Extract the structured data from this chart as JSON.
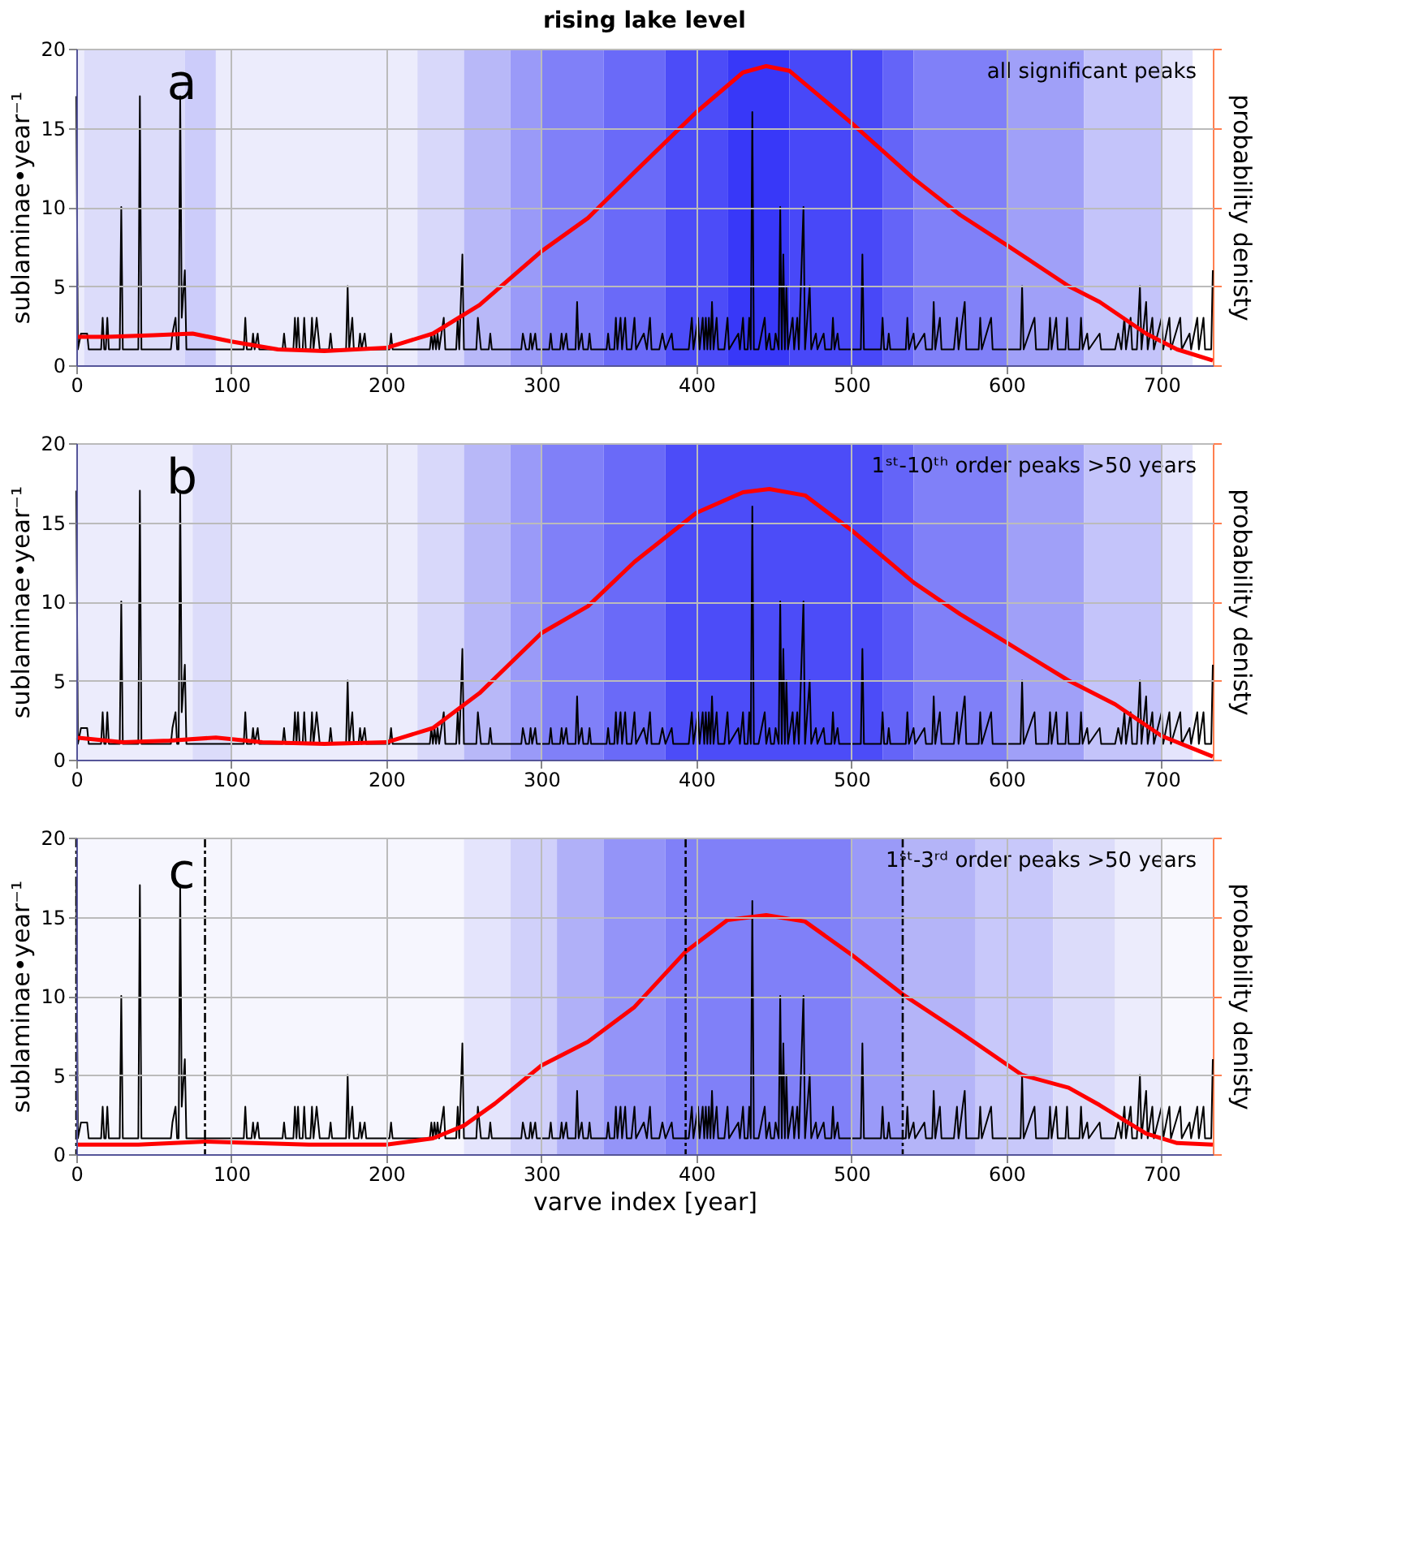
{
  "chart_data": [
    {
      "type": "line",
      "title": "rising lake level",
      "ylabel": "sublaminae•year⁻¹",
      "y2label": "probability denisty",
      "annotations": [
        "a",
        "all significant peaks"
      ],
      "xlim": [
        0,
        733
      ],
      "xticks": [
        0,
        100,
        200,
        300,
        400,
        500,
        600,
        700
      ],
      "ylim": [
        0,
        20
      ],
      "yticks": [
        0,
        5,
        10,
        15,
        20
      ],
      "grid": true,
      "bands": [
        {
          "axis": "x",
          "from": 0,
          "to": 5,
          "color": "#ececfc"
        },
        {
          "axis": "x",
          "from": 5,
          "to": 70,
          "color": "#dcdcfa"
        },
        {
          "axis": "x",
          "from": 70,
          "to": 90,
          "color": "#ccccfa"
        },
        {
          "axis": "x",
          "from": 90,
          "to": 220,
          "color": "#ececfc"
        },
        {
          "axis": "x",
          "from": 220,
          "to": 250,
          "color": "#d8d8fa"
        },
        {
          "axis": "x",
          "from": 250,
          "to": 280,
          "color": "#b8b8f8"
        },
        {
          "axis": "x",
          "from": 280,
          "to": 300,
          "color": "#9a9af8"
        },
        {
          "axis": "x",
          "from": 300,
          "to": 340,
          "color": "#8080f8"
        },
        {
          "axis": "x",
          "from": 340,
          "to": 380,
          "color": "#6a6af8"
        },
        {
          "axis": "x",
          "from": 380,
          "to": 420,
          "color": "#4c4cf8"
        },
        {
          "axis": "x",
          "from": 420,
          "to": 460,
          "color": "#3838f8"
        },
        {
          "axis": "x",
          "from": 460,
          "to": 520,
          "color": "#4848f8"
        },
        {
          "axis": "x",
          "from": 520,
          "to": 540,
          "color": "#6464f8"
        },
        {
          "axis": "x",
          "from": 540,
          "to": 600,
          "color": "#8080f8"
        },
        {
          "axis": "x",
          "from": 600,
          "to": 650,
          "color": "#a0a0f8"
        },
        {
          "axis": "x",
          "from": 650,
          "to": 700,
          "color": "#c4c4fa"
        },
        {
          "axis": "x",
          "from": 700,
          "to": 720,
          "color": "#e4e4fc"
        }
      ],
      "series": [
        {
          "color": "#000000",
          "x": [
            0,
            1,
            3,
            7,
            8,
            16,
            17,
            18,
            19,
            20,
            21,
            28,
            29,
            30,
            40,
            41,
            42,
            61,
            62,
            64,
            65,
            66,
            67,
            68,
            70,
            71,
            108,
            109,
            110,
            113,
            114,
            115,
            117,
            118,
            133,
            134,
            135,
            140,
            141,
            142,
            143,
            144,
            146,
            147,
            148,
            151,
            152,
            153,
            155,
            156,
            157,
            163,
            164,
            165,
            174,
            175,
            176,
            178,
            179,
            182,
            183,
            184,
            186,
            187,
            202,
            203,
            204,
            228,
            229,
            230,
            231,
            232,
            233,
            234,
            237,
            238,
            245,
            246,
            247,
            249,
            250,
            258,
            259,
            261,
            266,
            267,
            268,
            287,
            288,
            290,
            292,
            293,
            294,
            296,
            297,
            305,
            306,
            307,
            312,
            313,
            314,
            316,
            317,
            322,
            323,
            324,
            326,
            327,
            330,
            331,
            332,
            342,
            343,
            344,
            347,
            348,
            349,
            351,
            352,
            354,
            355,
            358,
            360,
            361,
            366,
            368,
            370,
            371,
            376,
            378,
            380,
            384,
            385,
            395,
            397,
            398,
            401,
            402,
            404,
            405,
            406,
            407,
            408,
            409,
            410,
            411,
            413,
            414,
            418,
            420,
            421,
            427,
            428,
            430,
            431,
            433,
            434,
            435,
            436,
            437,
            440,
            442,
            444,
            445,
            447,
            448,
            450,
            451,
            453,
            454,
            455,
            456,
            457,
            458,
            459,
            462,
            463,
            465,
            466,
            469,
            470,
            473,
            474,
            477,
            478,
            482,
            483,
            487,
            488,
            489,
            491,
            492,
            506,
            507,
            508,
            519,
            520,
            521,
            523,
            524,
            525,
            535,
            536,
            537,
            540,
            541,
            547,
            548,
            552,
            553,
            554,
            557,
            558,
            566,
            568,
            569,
            573,
            574,
            582,
            583,
            584,
            590,
            591,
            609,
            610,
            611,
            618,
            619,
            627,
            628,
            629,
            632,
            633,
            638,
            639,
            640,
            647,
            648,
            649,
            652,
            653,
            660,
            661,
            670,
            672,
            674,
            676,
            677,
            680,
            681,
            684,
            686,
            687,
            690,
            691,
            694,
            695,
            700,
            701,
            705,
            706,
            712,
            713,
            718,
            719,
            723,
            724,
            727,
            728,
            732,
            733
          ],
          "values": [
            17,
            1,
            2,
            2,
            1,
            1,
            3,
            1,
            1,
            3,
            1,
            1,
            10,
            1,
            1,
            17,
            1,
            1,
            2,
            3,
            1,
            1,
            17,
            3,
            6,
            1,
            1,
            3,
            1,
            1,
            2,
            1,
            2,
            1,
            1,
            2,
            1,
            1,
            3,
            1,
            3,
            1,
            1,
            3,
            1,
            1,
            3,
            1,
            3,
            2,
            1,
            1,
            2,
            1,
            1,
            5,
            1,
            3,
            1,
            1,
            2,
            1,
            2,
            1,
            1,
            2,
            1,
            1,
            2,
            1,
            2,
            1,
            2,
            1,
            3,
            1,
            1,
            3,
            1,
            7,
            1,
            1,
            3,
            1,
            1,
            2,
            1,
            1,
            2,
            1,
            1,
            2,
            1,
            2,
            1,
            1,
            2,
            1,
            1,
            2,
            1,
            2,
            1,
            1,
            4,
            1,
            2,
            1,
            1,
            2,
            1,
            1,
            2,
            1,
            1,
            3,
            1,
            3,
            1,
            3,
            1,
            1,
            3,
            1,
            2,
            1,
            3,
            1,
            1,
            2,
            1,
            2,
            1,
            1,
            3,
            1,
            3,
            1,
            3,
            1,
            3,
            1,
            3,
            1,
            4,
            1,
            3,
            1,
            1,
            3,
            1,
            2,
            1,
            3,
            1,
            1,
            3,
            1,
            16,
            1,
            1,
            2,
            3,
            1,
            2,
            1,
            1,
            2,
            1,
            10,
            1,
            7,
            1,
            5,
            1,
            3,
            1,
            3,
            1,
            10,
            1,
            5,
            1,
            2,
            1,
            2,
            1,
            1,
            3,
            1,
            2,
            1,
            1,
            7,
            1,
            1,
            3,
            1,
            1,
            2,
            1,
            1,
            3,
            1,
            2,
            1,
            2,
            1,
            1,
            4,
            1,
            3,
            1,
            1,
            3,
            1,
            4,
            1,
            1,
            3,
            1,
            3,
            1,
            1,
            5,
            1,
            3,
            1,
            1,
            3,
            1,
            3,
            1,
            1,
            3,
            1,
            1,
            3,
            1,
            2,
            1,
            2,
            1,
            1,
            2,
            1,
            3,
            1,
            3,
            1,
            1,
            5,
            1,
            4,
            1,
            3,
            1,
            3,
            1,
            3,
            1,
            3,
            1,
            2,
            1,
            3,
            1,
            3,
            1,
            1,
            6
          ]
        },
        {
          "color": "#ff0000",
          "x": [
            0,
            20,
            50,
            75,
            100,
            130,
            160,
            200,
            230,
            260,
            300,
            330,
            360,
            400,
            430,
            445,
            460,
            500,
            540,
            570,
            600,
            640,
            660,
            690,
            710,
            733
          ],
          "values": [
            1.8,
            1.8,
            1.9,
            2.0,
            1.5,
            1.0,
            0.9,
            1.1,
            2.0,
            3.8,
            7.2,
            9.3,
            12.2,
            16,
            18.5,
            18.9,
            18.6,
            15.3,
            11.8,
            9.5,
            7.6,
            5.0,
            4.0,
            2.0,
            1.0,
            0.3
          ]
        }
      ]
    },
    {
      "type": "line",
      "ylabel": "sublaminae•year⁻¹",
      "y2label": "probability denisty",
      "annotations": [
        "b",
        "1ˢᵗ-10ᵗʰ order peaks >50 years"
      ],
      "xlim": [
        0,
        733
      ],
      "xticks": [
        0,
        100,
        200,
        300,
        400,
        500,
        600,
        700
      ],
      "ylim": [
        0,
        20
      ],
      "yticks": [
        0,
        5,
        10,
        15,
        20
      ],
      "grid": true,
      "bands": [
        {
          "axis": "x",
          "from": 0,
          "to": 75,
          "color": "#ececfc"
        },
        {
          "axis": "x",
          "from": 75,
          "to": 100,
          "color": "#dcdcfa"
        },
        {
          "axis": "x",
          "from": 100,
          "to": 220,
          "color": "#ececfc"
        },
        {
          "axis": "x",
          "from": 220,
          "to": 250,
          "color": "#d8d8fa"
        },
        {
          "axis": "x",
          "from": 250,
          "to": 280,
          "color": "#b8b8f8"
        },
        {
          "axis": "x",
          "from": 280,
          "to": 300,
          "color": "#9a9af8"
        },
        {
          "axis": "x",
          "from": 300,
          "to": 340,
          "color": "#8080f8"
        },
        {
          "axis": "x",
          "from": 340,
          "to": 380,
          "color": "#6a6af8"
        },
        {
          "axis": "x",
          "from": 380,
          "to": 520,
          "color": "#4c4cf8"
        },
        {
          "axis": "x",
          "from": 520,
          "to": 540,
          "color": "#6464f8"
        },
        {
          "axis": "x",
          "from": 540,
          "to": 600,
          "color": "#8080f8"
        },
        {
          "axis": "x",
          "from": 600,
          "to": 650,
          "color": "#a0a0f8"
        },
        {
          "axis": "x",
          "from": 650,
          "to": 700,
          "color": "#c4c4fa"
        },
        {
          "axis": "x",
          "from": 700,
          "to": 720,
          "color": "#e4e4fc"
        }
      ],
      "series": [
        {
          "color": "#000000",
          "x": [
            0,
            1,
            3,
            7,
            8,
            16,
            17,
            18,
            19,
            20,
            21,
            28,
            29,
            30,
            40,
            41,
            42,
            61,
            62,
            64,
            65,
            66,
            67,
            68,
            70,
            71,
            108,
            109,
            110,
            113,
            114,
            115,
            117,
            118,
            133,
            134,
            135,
            140,
            141,
            142,
            143,
            144,
            146,
            147,
            148,
            151,
            152,
            153,
            155,
            156,
            157,
            163,
            164,
            165,
            174,
            175,
            176,
            178,
            179,
            182,
            183,
            184,
            186,
            187,
            202,
            203,
            204,
            228,
            229,
            230,
            231,
            232,
            233,
            234,
            237,
            238,
            245,
            246,
            247,
            249,
            250,
            258,
            259,
            261,
            266,
            267,
            268,
            287,
            288,
            290,
            292,
            293,
            294,
            296,
            297,
            305,
            306,
            307,
            312,
            313,
            314,
            316,
            317,
            322,
            323,
            324,
            326,
            327,
            330,
            331,
            332,
            342,
            343,
            344,
            347,
            348,
            349,
            351,
            352,
            354,
            355,
            358,
            360,
            361,
            366,
            368,
            370,
            371,
            376,
            378,
            380,
            384,
            385,
            395,
            397,
            398,
            401,
            402,
            404,
            405,
            406,
            407,
            408,
            409,
            410,
            411,
            413,
            414,
            418,
            420,
            421,
            427,
            428,
            430,
            431,
            433,
            434,
            435,
            436,
            437,
            440,
            442,
            444,
            445,
            447,
            448,
            450,
            451,
            453,
            454,
            455,
            456,
            457,
            458,
            459,
            462,
            463,
            465,
            466,
            469,
            470,
            473,
            474,
            477,
            478,
            482,
            483,
            487,
            488,
            489,
            491,
            492,
            506,
            507,
            508,
            519,
            520,
            521,
            523,
            524,
            525,
            535,
            536,
            537,
            540,
            541,
            547,
            548,
            552,
            553,
            554,
            557,
            558,
            566,
            568,
            569,
            573,
            574,
            582,
            583,
            584,
            590,
            591,
            609,
            610,
            611,
            618,
            619,
            627,
            628,
            629,
            632,
            633,
            638,
            639,
            640,
            647,
            648,
            649,
            652,
            653,
            660,
            661,
            670,
            672,
            674,
            676,
            677,
            680,
            681,
            684,
            686,
            687,
            690,
            691,
            694,
            695,
            700,
            701,
            705,
            706,
            712,
            713,
            718,
            719,
            723,
            724,
            727,
            728,
            732,
            733
          ],
          "values": [
            17,
            1,
            2,
            2,
            1,
            1,
            3,
            1,
            1,
            3,
            1,
            1,
            10,
            1,
            1,
            17,
            1,
            1,
            2,
            3,
            1,
            1,
            17,
            3,
            6,
            1,
            1,
            3,
            1,
            1,
            2,
            1,
            2,
            1,
            1,
            2,
            1,
            1,
            3,
            1,
            3,
            1,
            1,
            3,
            1,
            1,
            3,
            1,
            3,
            2,
            1,
            1,
            2,
            1,
            1,
            5,
            1,
            3,
            1,
            1,
            2,
            1,
            2,
            1,
            1,
            2,
            1,
            1,
            2,
            1,
            2,
            1,
            2,
            1,
            3,
            1,
            1,
            3,
            1,
            7,
            1,
            1,
            3,
            1,
            1,
            2,
            1,
            1,
            2,
            1,
            1,
            2,
            1,
            2,
            1,
            1,
            2,
            1,
            1,
            2,
            1,
            2,
            1,
            1,
            4,
            1,
            2,
            1,
            1,
            2,
            1,
            1,
            2,
            1,
            1,
            3,
            1,
            3,
            1,
            3,
            1,
            1,
            3,
            1,
            2,
            1,
            3,
            1,
            1,
            2,
            1,
            2,
            1,
            1,
            3,
            1,
            3,
            1,
            3,
            1,
            3,
            1,
            3,
            1,
            4,
            1,
            3,
            1,
            1,
            3,
            1,
            2,
            1,
            3,
            1,
            1,
            3,
            1,
            16,
            1,
            1,
            2,
            3,
            1,
            2,
            1,
            1,
            2,
            1,
            10,
            1,
            7,
            1,
            5,
            1,
            3,
            1,
            3,
            1,
            10,
            1,
            5,
            1,
            2,
            1,
            2,
            1,
            1,
            3,
            1,
            2,
            1,
            1,
            7,
            1,
            1,
            3,
            1,
            1,
            2,
            1,
            1,
            3,
            1,
            2,
            1,
            2,
            1,
            1,
            4,
            1,
            3,
            1,
            1,
            3,
            1,
            4,
            1,
            1,
            3,
            1,
            3,
            1,
            1,
            5,
            1,
            3,
            1,
            1,
            3,
            1,
            3,
            1,
            1,
            3,
            1,
            1,
            3,
            1,
            2,
            1,
            2,
            1,
            1,
            2,
            1,
            3,
            1,
            3,
            1,
            1,
            5,
            1,
            4,
            1,
            3,
            1,
            3,
            1,
            3,
            1,
            3,
            1,
            2,
            1,
            3,
            1,
            3,
            1,
            1,
            6
          ]
        },
        {
          "color": "#ff0000",
          "x": [
            0,
            30,
            60,
            90,
            120,
            160,
            200,
            230,
            260,
            300,
            330,
            360,
            400,
            430,
            447,
            470,
            500,
            540,
            570,
            600,
            640,
            670,
            700,
            733
          ],
          "values": [
            1.4,
            1.1,
            1.2,
            1.4,
            1.1,
            1.0,
            1.1,
            2.0,
            4.2,
            8.0,
            9.7,
            12.5,
            15.6,
            16.9,
            17.1,
            16.7,
            14.5,
            11.2,
            9.2,
            7.4,
            5.0,
            3.5,
            1.5,
            0.2
          ]
        }
      ]
    },
    {
      "type": "line",
      "ylabel": "sublaminae•year⁻¹",
      "y2label": "probability denisty",
      "xlabel": "varve index [year]",
      "annotations": [
        "c",
        "1ˢᵗ-3ʳᵈ order peaks >50 years"
      ],
      "xlim": [
        0,
        733
      ],
      "xticks": [
        0,
        100,
        200,
        300,
        400,
        500,
        600,
        700
      ],
      "ylim": [
        0,
        20
      ],
      "yticks": [
        0,
        5,
        10,
        15,
        20
      ],
      "grid": true,
      "ref_lines": [
        {
          "axis": "x",
          "value": 0,
          "color": "#000000",
          "line_style": "dashed"
        },
        {
          "axis": "x",
          "value": 83,
          "color": "#000000",
          "line_style": "dashed"
        },
        {
          "axis": "x",
          "value": 393,
          "color": "#000000",
          "line_style": "dashed"
        },
        {
          "axis": "x",
          "value": 533,
          "color": "#000000",
          "line_style": "dashed"
        }
      ],
      "bands": [
        {
          "axis": "x",
          "from": 0,
          "to": 250,
          "color": "#f6f6fe"
        },
        {
          "axis": "x",
          "from": 250,
          "to": 280,
          "color": "#e4e4fc"
        },
        {
          "axis": "x",
          "from": 280,
          "to": 310,
          "color": "#d0d0fa"
        },
        {
          "axis": "x",
          "from": 310,
          "to": 340,
          "color": "#b0b0f8"
        },
        {
          "axis": "x",
          "from": 340,
          "to": 380,
          "color": "#9494f8"
        },
        {
          "axis": "x",
          "from": 380,
          "to": 500,
          "color": "#8080f8"
        },
        {
          "axis": "x",
          "from": 500,
          "to": 533,
          "color": "#9a9af8"
        },
        {
          "axis": "x",
          "from": 533,
          "to": 580,
          "color": "#b4b4f8"
        },
        {
          "axis": "x",
          "from": 580,
          "to": 630,
          "color": "#c8c8fa"
        },
        {
          "axis": "x",
          "from": 630,
          "to": 670,
          "color": "#dcdcfa"
        },
        {
          "axis": "x",
          "from": 670,
          "to": 700,
          "color": "#ececfc"
        },
        {
          "axis": "x",
          "from": 700,
          "to": 733,
          "color": "#f8f8fe"
        }
      ],
      "series": [
        {
          "color": "#000000",
          "x": [
            0,
            1,
            3,
            7,
            8,
            16,
            17,
            18,
            19,
            20,
            21,
            28,
            29,
            30,
            40,
            41,
            42,
            61,
            62,
            64,
            65,
            66,
            67,
            68,
            70,
            71,
            108,
            109,
            110,
            113,
            114,
            115,
            117,
            118,
            133,
            134,
            135,
            140,
            141,
            142,
            143,
            144,
            146,
            147,
            148,
            151,
            152,
            153,
            155,
            156,
            157,
            163,
            164,
            165,
            174,
            175,
            176,
            178,
            179,
            182,
            183,
            184,
            186,
            187,
            202,
            203,
            204,
            228,
            229,
            230,
            231,
            232,
            233,
            234,
            237,
            238,
            245,
            246,
            247,
            249,
            250,
            258,
            259,
            261,
            266,
            267,
            268,
            287,
            288,
            290,
            292,
            293,
            294,
            296,
            297,
            305,
            306,
            307,
            312,
            313,
            314,
            316,
            317,
            322,
            323,
            324,
            326,
            327,
            330,
            331,
            332,
            342,
            343,
            344,
            347,
            348,
            349,
            351,
            352,
            354,
            355,
            358,
            360,
            361,
            366,
            368,
            370,
            371,
            376,
            378,
            380,
            384,
            385,
            395,
            397,
            398,
            401,
            402,
            404,
            405,
            406,
            407,
            408,
            409,
            410,
            411,
            413,
            414,
            418,
            420,
            421,
            427,
            428,
            430,
            431,
            433,
            434,
            435,
            436,
            437,
            440,
            442,
            444,
            445,
            447,
            448,
            450,
            451,
            453,
            454,
            455,
            456,
            457,
            458,
            459,
            462,
            463,
            465,
            466,
            469,
            470,
            473,
            474,
            477,
            478,
            482,
            483,
            487,
            488,
            489,
            491,
            492,
            506,
            507,
            508,
            519,
            520,
            521,
            523,
            524,
            525,
            535,
            536,
            537,
            540,
            541,
            547,
            548,
            552,
            553,
            554,
            557,
            558,
            566,
            568,
            569,
            573,
            574,
            582,
            583,
            584,
            590,
            591,
            609,
            610,
            611,
            618,
            619,
            627,
            628,
            629,
            632,
            633,
            638,
            639,
            640,
            647,
            648,
            649,
            652,
            653,
            660,
            661,
            670,
            672,
            674,
            676,
            677,
            680,
            681,
            684,
            686,
            687,
            690,
            691,
            694,
            695,
            700,
            701,
            705,
            706,
            712,
            713,
            718,
            719,
            723,
            724,
            727,
            728,
            732,
            733
          ],
          "values": [
            17,
            1,
            2,
            2,
            1,
            1,
            3,
            1,
            1,
            3,
            1,
            1,
            10,
            1,
            1,
            17,
            1,
            1,
            2,
            3,
            1,
            1,
            17,
            3,
            6,
            1,
            1,
            3,
            1,
            1,
            2,
            1,
            2,
            1,
            1,
            2,
            1,
            1,
            3,
            1,
            3,
            1,
            1,
            3,
            1,
            1,
            3,
            1,
            3,
            2,
            1,
            1,
            2,
            1,
            1,
            5,
            1,
            3,
            1,
            1,
            2,
            1,
            2,
            1,
            1,
            2,
            1,
            1,
            2,
            1,
            2,
            1,
            2,
            1,
            3,
            1,
            1,
            3,
            1,
            7,
            1,
            1,
            3,
            1,
            1,
            2,
            1,
            1,
            2,
            1,
            1,
            2,
            1,
            2,
            1,
            1,
            2,
            1,
            1,
            2,
            1,
            2,
            1,
            1,
            4,
            1,
            2,
            1,
            1,
            2,
            1,
            1,
            2,
            1,
            1,
            3,
            1,
            3,
            1,
            3,
            1,
            1,
            3,
            1,
            2,
            1,
            3,
            1,
            1,
            2,
            1,
            2,
            1,
            1,
            3,
            1,
            3,
            1,
            3,
            1,
            3,
            1,
            3,
            1,
            4,
            1,
            3,
            1,
            1,
            3,
            1,
            2,
            1,
            3,
            1,
            1,
            3,
            1,
            16,
            1,
            1,
            2,
            3,
            1,
            2,
            1,
            1,
            2,
            1,
            10,
            1,
            7,
            1,
            5,
            1,
            3,
            1,
            3,
            1,
            10,
            1,
            5,
            1,
            2,
            1,
            2,
            1,
            1,
            3,
            1,
            2,
            1,
            1,
            7,
            1,
            1,
            3,
            1,
            1,
            2,
            1,
            1,
            3,
            1,
            2,
            1,
            2,
            1,
            1,
            4,
            1,
            3,
            1,
            1,
            3,
            1,
            4,
            1,
            1,
            3,
            1,
            3,
            1,
            1,
            5,
            1,
            3,
            1,
            1,
            3,
            1,
            3,
            1,
            1,
            3,
            1,
            1,
            3,
            1,
            2,
            1,
            2,
            1,
            1,
            2,
            1,
            3,
            1,
            3,
            1,
            1,
            5,
            1,
            4,
            1,
            3,
            1,
            3,
            1,
            3,
            1,
            3,
            1,
            2,
            1,
            3,
            1,
            3,
            1,
            1,
            6
          ]
        },
        {
          "color": "#ff0000",
          "x": [
            0,
            40,
            83,
            150,
            200,
            230,
            250,
            270,
            300,
            330,
            360,
            393,
            420,
            445,
            470,
            500,
            533,
            570,
            610,
            640,
            660,
            690,
            710,
            733
          ],
          "values": [
            0.6,
            0.6,
            0.8,
            0.6,
            0.6,
            1.0,
            1.8,
            3.2,
            5.6,
            7.1,
            9.3,
            12.8,
            14.8,
            15.1,
            14.7,
            12.6,
            10.1,
            7.7,
            5.0,
            4.2,
            3.1,
            1.3,
            0.7,
            0.6
          ]
        }
      ]
    }
  ]
}
